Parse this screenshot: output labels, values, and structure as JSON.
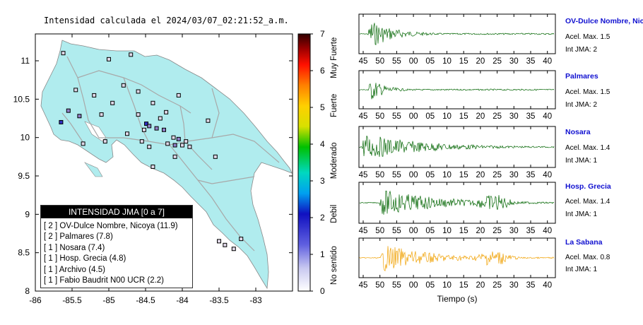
{
  "map_title": "Intensidad calculada el 2024/03/07_02:21:52_a.m.",
  "map": {
    "x_ticks": [
      "-86",
      "-85.5",
      "-85",
      "-84.5",
      "-84",
      "-83.5",
      "-83"
    ],
    "y_ticks": [
      "11",
      "10.5",
      "10",
      "9.5",
      "9",
      "8.5",
      "8"
    ],
    "land_color": "#b0ecee",
    "station_color": "#e0d8e8"
  },
  "colorbar": {
    "ticks": [
      "0",
      "1",
      "2",
      "3",
      "4",
      "5",
      "6",
      "7"
    ],
    "labels": [
      "No sentido",
      "Debil",
      "Moderado",
      "Fuerte",
      "Muy Fuerte"
    ]
  },
  "legend": {
    "header": "INTENSIDAD JMA [0 a 7]",
    "items": [
      "[ 2 ] OV-Dulce Nombre, Nicoya (11.9)",
      "[ 2 ] Palmares (7.8)",
      "[ 1 ] Nosara (7.4)",
      "[ 1 ] Hosp. Grecia (4.8)",
      "[ 1 ] Archivo (4.5)",
      "[ 1 ] Fabio Baudrit N00 UCR (2.2)"
    ]
  },
  "traces": {
    "x_ticks": [
      "45",
      "50",
      "55",
      "00",
      "05",
      "10",
      "15",
      "20",
      "25",
      "30",
      "35",
      "40"
    ],
    "xlabel": "Tiempo (s)",
    "stations": [
      {
        "name": "OV-Dulce Nombre, Nicoya",
        "acc": "Acel. Max. 1.5",
        "int": "Int JMA: 2",
        "color": "#006400"
      },
      {
        "name": "Palmares",
        "acc": "Acel. Max. 1.5",
        "int": "Int JMA: 2",
        "color": "#006400"
      },
      {
        "name": "Nosara",
        "acc": "Acel. Max. 1.4",
        "int": "Int JMA: 1",
        "color": "#006400"
      },
      {
        "name": "Hosp. Grecia",
        "acc": "Acel. Max. 1.4",
        "int": "Int JMA: 1",
        "color": "#006400"
      },
      {
        "name": "La Sabana",
        "acc": "Acel. Max. 0.8",
        "int": "Int JMA: 1",
        "color": "#f0a000"
      }
    ]
  },
  "chart_data": [
    {
      "type": "scatter",
      "title": "Intensidad calculada el 2024/03/07_02:21:52_a.m.",
      "xlim": [
        -86,
        -82.5
      ],
      "ylim": [
        8,
        11.35
      ],
      "x_ticks": [
        -86,
        -85.5,
        -85,
        -84.5,
        -84,
        -83.5,
        -83
      ],
      "y_ticks": [
        11,
        10.5,
        10,
        9.5,
        9,
        8.5,
        8
      ],
      "colorbar": {
        "range": [
          0,
          7
        ],
        "labels": [
          "No sentido",
          "Debil",
          "Moderado",
          "Fuerte",
          "Muy Fuerte"
        ]
      },
      "legend": [
        "OV-Dulce Nombre, Nicoya (11.9)",
        "Palmares (7.8)",
        "Nosara (7.4)",
        "Hosp. Grecia (4.8)",
        "Archivo (4.5)",
        "Fabio Baudrit N00 UCR (2.2)"
      ],
      "legend_intensity": [
        2,
        2,
        1,
        1,
        1,
        1
      ],
      "stations": [
        {
          "lon": -85.65,
          "lat": 10.2,
          "intensity": 2
        },
        {
          "lon": -84.49,
          "lat": 10.18,
          "intensity": 2
        },
        {
          "lon": -84.45,
          "lat": 10.15,
          "intensity": 1
        },
        {
          "lon": -84.35,
          "lat": 10.12,
          "intensity": 1
        },
        {
          "lon": -84.25,
          "lat": 10.1,
          "intensity": 1
        },
        {
          "lon": -84.05,
          "lat": 9.98,
          "intensity": 1
        },
        {
          "lon": -84.1,
          "lat": 9.9,
          "intensity": 1
        },
        {
          "lon": -85.55,
          "lat": 10.35,
          "intensity": 1
        },
        {
          "lon": -85.4,
          "lat": 10.28,
          "intensity": 1
        },
        {
          "lon": -85.62,
          "lat": 11.1,
          "intensity": 0
        },
        {
          "lon": -85.0,
          "lat": 11.02,
          "intensity": 0
        },
        {
          "lon": -84.7,
          "lat": 11.08,
          "intensity": 0
        },
        {
          "lon": -85.2,
          "lat": 10.55,
          "intensity": 0
        },
        {
          "lon": -84.8,
          "lat": 10.68,
          "intensity": 0
        },
        {
          "lon": -84.6,
          "lat": 10.6,
          "intensity": 0
        },
        {
          "lon": -84.4,
          "lat": 10.45,
          "intensity": 0
        },
        {
          "lon": -84.05,
          "lat": 10.55,
          "intensity": 0
        },
        {
          "lon": -85.45,
          "lat": 10.62,
          "intensity": 0
        },
        {
          "lon": -85.1,
          "lat": 10.3,
          "intensity": 0
        },
        {
          "lon": -84.95,
          "lat": 10.45,
          "intensity": 0
        },
        {
          "lon": -84.75,
          "lat": 10.05,
          "intensity": 0
        },
        {
          "lon": -84.55,
          "lat": 9.95,
          "intensity": 0
        },
        {
          "lon": -84.2,
          "lat": 9.92,
          "intensity": 0
        },
        {
          "lon": -84.12,
          "lat": 10.0,
          "intensity": 0
        },
        {
          "lon": -84.0,
          "lat": 9.9,
          "intensity": 0
        },
        {
          "lon": -83.95,
          "lat": 9.95,
          "intensity": 0
        },
        {
          "lon": -83.9,
          "lat": 9.88,
          "intensity": 0
        },
        {
          "lon": -84.3,
          "lat": 10.25,
          "intensity": 0
        },
        {
          "lon": -84.6,
          "lat": 10.3,
          "intensity": 0
        },
        {
          "lon": -85.35,
          "lat": 9.92,
          "intensity": 0
        },
        {
          "lon": -85.05,
          "lat": 9.95,
          "intensity": 0
        },
        {
          "lon": -84.4,
          "lat": 9.62,
          "intensity": 0
        },
        {
          "lon": -84.1,
          "lat": 9.75,
          "intensity": 0
        },
        {
          "lon": -83.65,
          "lat": 10.22,
          "intensity": 0
        },
        {
          "lon": -83.55,
          "lat": 9.75,
          "intensity": 0
        },
        {
          "lon": -83.5,
          "lat": 8.65,
          "intensity": 0
        },
        {
          "lon": -83.42,
          "lat": 8.6,
          "intensity": 0
        },
        {
          "lon": -83.3,
          "lat": 8.55,
          "intensity": 0
        },
        {
          "lon": -83.2,
          "lat": 8.68,
          "intensity": 0
        },
        {
          "lon": -84.22,
          "lat": 10.33,
          "intensity": 0
        },
        {
          "lon": -84.52,
          "lat": 10.1,
          "intensity": 0
        },
        {
          "lon": -84.45,
          "lat": 9.88,
          "intensity": 0
        }
      ]
    },
    {
      "type": "line",
      "title": "OV-Dulce Nombre, Nicoya",
      "x_ticks": [
        "45",
        "50",
        "55",
        "00",
        "05",
        "10",
        "15",
        "20",
        "25",
        "30",
        "35",
        "40"
      ],
      "peak_acceleration": 1.5,
      "intensity": 2
    },
    {
      "type": "line",
      "title": "Palmares",
      "x_ticks": [
        "45",
        "50",
        "55",
        "00",
        "05",
        "10",
        "15",
        "20",
        "25",
        "30",
        "35",
        "40"
      ],
      "peak_acceleration": 1.5,
      "intensity": 2
    },
    {
      "type": "line",
      "title": "Nosara",
      "x_ticks": [
        "45",
        "50",
        "55",
        "00",
        "05",
        "10",
        "15",
        "20",
        "25",
        "30",
        "35",
        "40"
      ],
      "peak_acceleration": 1.4,
      "intensity": 1
    },
    {
      "type": "line",
      "title": "Hosp. Grecia",
      "x_ticks": [
        "45",
        "50",
        "55",
        "00",
        "05",
        "10",
        "15",
        "20",
        "25",
        "30",
        "35",
        "40"
      ],
      "peak_acceleration": 1.4,
      "intensity": 1
    },
    {
      "type": "line",
      "title": "La Sabana",
      "x_ticks": [
        "45",
        "50",
        "55",
        "00",
        "05",
        "10",
        "15",
        "20",
        "25",
        "30",
        "35",
        "40"
      ],
      "xlabel": "Tiempo (s)",
      "peak_acceleration": 0.8,
      "intensity": 1
    }
  ]
}
